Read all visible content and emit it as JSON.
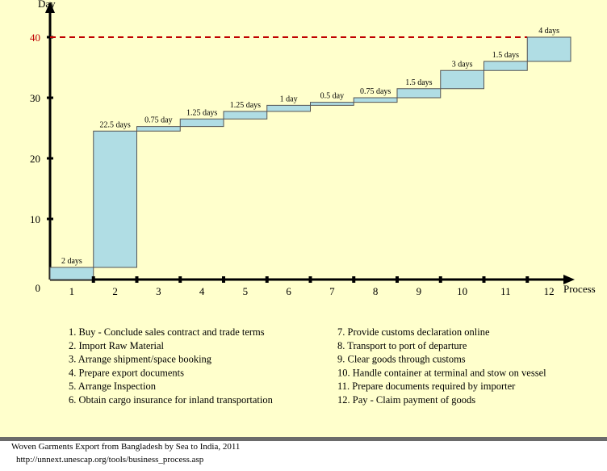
{
  "chart_data": {
    "type": "waterfall",
    "y_axis_label": "Day",
    "x_axis_label": "Process",
    "categories": [
      "1",
      "2",
      "3",
      "4",
      "5",
      "6",
      "7",
      "8",
      "9",
      "10",
      "11",
      "12"
    ],
    "values": [
      2,
      22.5,
      0.75,
      1.25,
      1.25,
      1,
      0.5,
      0.75,
      1.5,
      3,
      1.5,
      4
    ],
    "value_labels": [
      "2 days",
      "22.5 days",
      "0.75 day",
      "1.25 days",
      "1.25 days",
      "1 day",
      "0.5 day",
      "0.75 days",
      "1.5 days",
      "3 days",
      "1.5 days",
      "4 days"
    ],
    "color": "#b0dde4",
    "ylim": [
      0,
      44
    ],
    "yticks": [
      0,
      10,
      20,
      30,
      40
    ],
    "reference_line": {
      "value": 40,
      "color": "#c00000"
    },
    "legend_items": [
      "1. Buy - Conclude sales contract and trade terms",
      "2. Import Raw Material",
      "3. Arrange shipment/space booking",
      "4. Prepare export documents",
      "5. Arrange Inspection",
      "6. Obtain cargo insurance for inland transportation",
      "7. Provide customs declaration online",
      "8. Transport to port of departure",
      "9. Clear goods through customs",
      "10. Handle container at terminal and stow on vessel",
      "11. Prepare documents required by importer",
      "12. Pay - Claim payment of goods"
    ]
  },
  "source": {
    "title": "Woven Garments Export from Bangladesh by Sea to India, 2011",
    "url": "http://unnext.unescap.org/tools/business_process.asp"
  }
}
